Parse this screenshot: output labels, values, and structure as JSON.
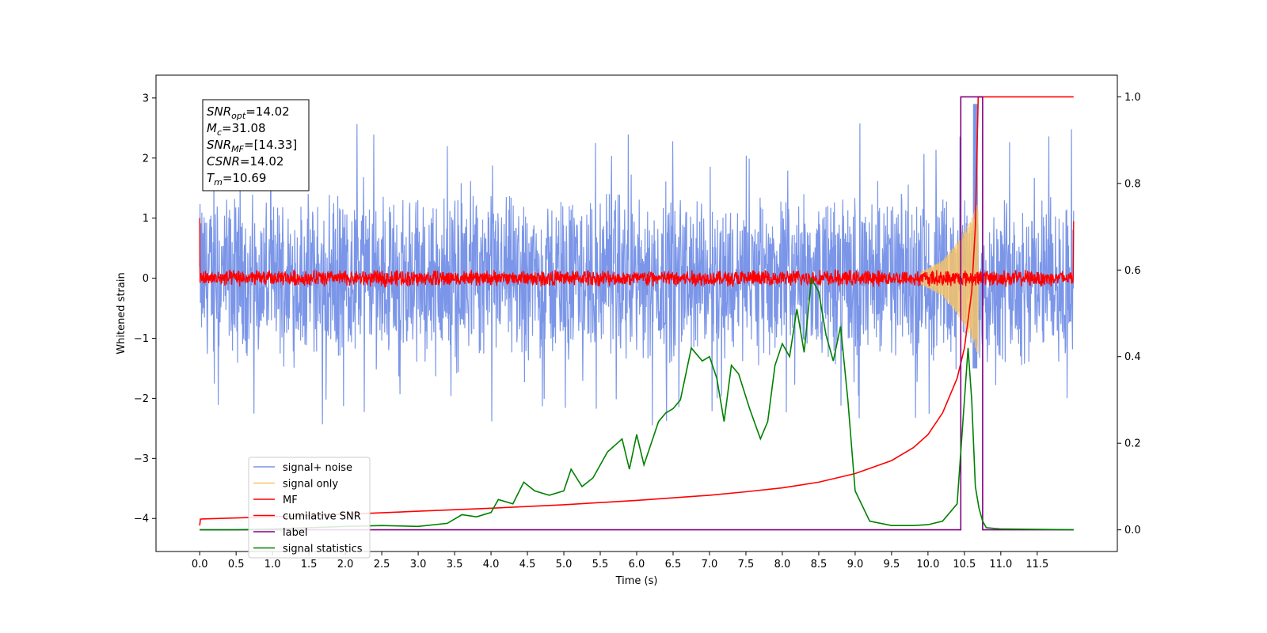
{
  "chart_data": {
    "type": "line",
    "title": "",
    "xlabel": "Time (s)",
    "ylabel": "Whitened strain",
    "xlim": [
      -0.6,
      12.6
    ],
    "ylim": [
      -4.55,
      3.38
    ],
    "y2lim": [
      -0.05,
      1.05
    ],
    "x_ticks": [
      "0.0",
      "0.5",
      "1.0",
      "1.5",
      "2.0",
      "2.5",
      "3.0",
      "3.5",
      "4.0",
      "4.5",
      "5.0",
      "5.5",
      "6.0",
      "6.5",
      "7.0",
      "7.5",
      "8.0",
      "8.5",
      "9.0",
      "9.5",
      "10.0",
      "10.5",
      "11.0",
      "11.5"
    ],
    "y_ticks": [
      "3",
      "2",
      "1",
      "0",
      "−1",
      "−2",
      "−3",
      "−4"
    ],
    "y2_ticks": [
      "1.0",
      "0.8",
      "0.6",
      "0.4",
      "0.2",
      "0.0"
    ],
    "grid": false,
    "legend_position": "lower-left",
    "annotation": {
      "lines": [
        {
          "sym": "SNR",
          "sub": "opt",
          "value": "=14.02"
        },
        {
          "sym": "M",
          "sub": "c",
          "value": "=31.08"
        },
        {
          "sym": "SNR",
          "sub": "MF",
          "value": "=[14.33]"
        },
        {
          "sym": "CSNR",
          "sub": "",
          "value": "=14.02"
        },
        {
          "sym": "T",
          "sub": "m",
          "value": "=10.69"
        }
      ]
    },
    "series": [
      {
        "name": "signal+ noise",
        "color": "#7b96e8",
        "axis": "left",
        "description_value": "noise band approx -1.5 to 1.6 around 0 over 0-12 s, spikes up to 2.9"
      },
      {
        "name": "signal only",
        "color": "#f5c36b",
        "axis": "left",
        "x": [
          9.9,
          10.2,
          10.4,
          10.6,
          10.69
        ],
        "amplitude": [
          0.1,
          0.3,
          0.6,
          1.0,
          1.3
        ]
      },
      {
        "name": "MF",
        "color": "#ff0000",
        "axis": "left",
        "description_value": "noise near 0 with amplitude about 0.1, edges near 1.0"
      },
      {
        "name": "cumilative SNR",
        "color": "#ff0000",
        "axis": "right",
        "x": [
          0.0,
          0.01,
          1.0,
          2.0,
          3.0,
          4.0,
          5.0,
          6.0,
          7.0,
          7.5,
          8.0,
          8.5,
          9.0,
          9.5,
          9.8,
          10.0,
          10.2,
          10.4,
          10.5,
          10.6,
          10.65,
          10.69,
          11.0,
          12.0
        ],
        "values": [
          0.01,
          0.025,
          0.03,
          0.036,
          0.043,
          0.05,
          0.058,
          0.068,
          0.08,
          0.088,
          0.097,
          0.11,
          0.13,
          0.16,
          0.19,
          0.22,
          0.27,
          0.35,
          0.42,
          0.55,
          0.7,
          1.0,
          1.0,
          1.0
        ]
      },
      {
        "name": "label",
        "color": "#800080",
        "axis": "right",
        "x": [
          0.0,
          10.45,
          10.45,
          10.75,
          10.75,
          12.0
        ],
        "values": [
          0.0,
          0.0,
          1.0,
          1.0,
          0.0,
          0.0
        ]
      },
      {
        "name": "signal statistics",
        "color": "#008000",
        "axis": "right",
        "x": [
          0.0,
          0.5,
          1.0,
          1.5,
          2.0,
          2.5,
          3.0,
          3.4,
          3.6,
          3.8,
          4.0,
          4.1,
          4.3,
          4.45,
          4.6,
          4.8,
          5.0,
          5.1,
          5.25,
          5.4,
          5.6,
          5.8,
          5.9,
          6.0,
          6.1,
          6.2,
          6.3,
          6.4,
          6.5,
          6.6,
          6.75,
          6.9,
          7.0,
          7.1,
          7.2,
          7.3,
          7.4,
          7.55,
          7.7,
          7.8,
          7.9,
          8.0,
          8.1,
          8.2,
          8.3,
          8.4,
          8.5,
          8.6,
          8.7,
          8.8,
          8.9,
          9.0,
          9.2,
          9.5,
          9.8,
          10.0,
          10.2,
          10.4,
          10.5,
          10.55,
          10.6,
          10.65,
          10.7,
          10.75,
          10.8,
          11.0,
          12.0
        ],
        "values": [
          0.0,
          0.0,
          0.002,
          0.005,
          0.008,
          0.01,
          0.008,
          0.015,
          0.035,
          0.03,
          0.04,
          0.07,
          0.06,
          0.11,
          0.09,
          0.08,
          0.09,
          0.14,
          0.1,
          0.12,
          0.18,
          0.21,
          0.14,
          0.22,
          0.15,
          0.2,
          0.25,
          0.27,
          0.28,
          0.3,
          0.42,
          0.39,
          0.4,
          0.35,
          0.25,
          0.38,
          0.36,
          0.28,
          0.21,
          0.25,
          0.38,
          0.43,
          0.4,
          0.51,
          0.41,
          0.58,
          0.55,
          0.45,
          0.39,
          0.47,
          0.3,
          0.09,
          0.02,
          0.01,
          0.01,
          0.012,
          0.02,
          0.06,
          0.3,
          0.42,
          0.3,
          0.1,
          0.05,
          0.02,
          0.005,
          0.002,
          0.0
        ]
      }
    ]
  }
}
